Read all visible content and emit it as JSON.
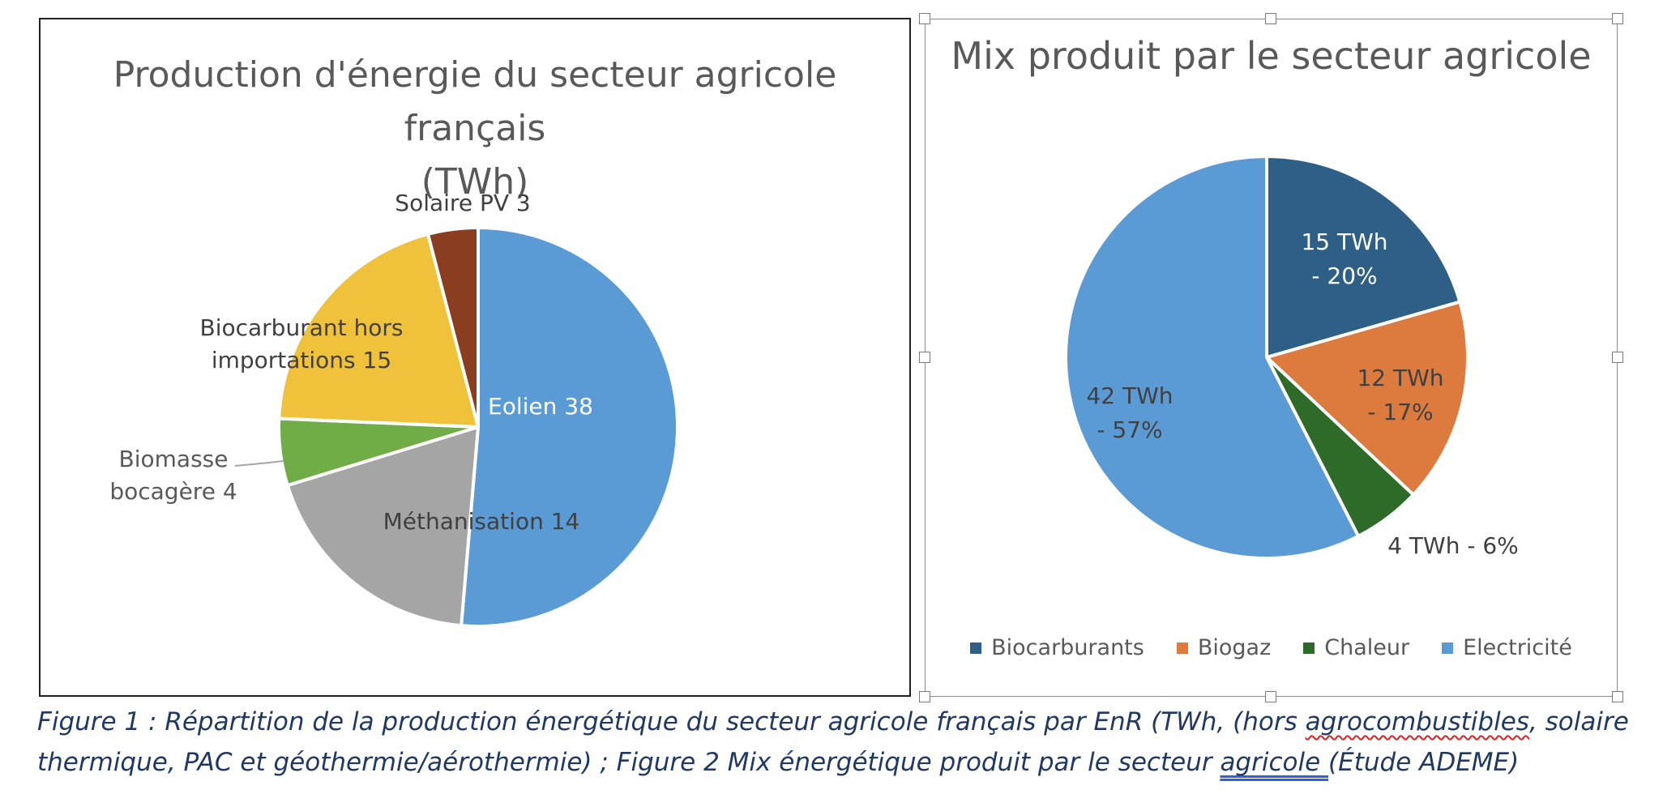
{
  "charts": [
    {
      "title_line1": "Production d'énergie du secteur agricole français",
      "title_line2": "(TWh)"
    },
    {
      "title": "Mix produit par le secteur agricole"
    }
  ],
  "chart_data": [
    {
      "type": "pie",
      "title": "Production d'énergie du secteur agricole français (TWh)",
      "unit": "TWh",
      "slices": [
        {
          "label": "Eolien",
          "value": 38,
          "data_label": "Eolien 38",
          "color": "#5b9bd5"
        },
        {
          "label": "Méthanisation",
          "value": 14,
          "data_label": "Méthanisation 14",
          "color": "#a5a5a5"
        },
        {
          "label": "Biomasse bocagère",
          "value": 4,
          "data_label": "Biomasse bocagère 4",
          "color": "#70ad47"
        },
        {
          "label": "Biocarburant hors importations",
          "value": 15,
          "data_label": "Biocarburant hors importations 15",
          "color": "#f0c23c"
        },
        {
          "label": "Solaire PV",
          "value": 3,
          "data_label": "Solaire PV 3",
          "color": "#8b3e1f"
        }
      ]
    },
    {
      "type": "pie",
      "title": "Mix produit par le secteur agricole",
      "legend": "bottom",
      "slices": [
        {
          "label": "Biocarburants",
          "value": 15,
          "percent": 20,
          "data_label": "15 TWh - 20%",
          "color": "#2e5f86"
        },
        {
          "label": "Biogaz",
          "value": 12,
          "percent": 17,
          "data_label": "12 TWh - 17%",
          "color": "#dd7a3e"
        },
        {
          "label": "Chaleur",
          "value": 4,
          "percent": 6,
          "data_label": "4 TWh - 6%",
          "color": "#2f6b28"
        },
        {
          "label": "Electricité",
          "value": 42,
          "percent": 57,
          "data_label": "42 TWh - 57%",
          "color": "#5b9bd5"
        }
      ]
    }
  ],
  "caption": {
    "part1": "Figure 1 : Répartition de la production énergétique du secteur agricole français par EnR (TWh, (hors ",
    "squiggle_word": "agrocombustibles",
    "part2": ", solaire thermique, PAC et géothermie/aérothermie) ; Figure 2 Mix énergétique produit par le secteur ",
    "underlined_word": "agricole ",
    "part3": " (Étude ADEME)"
  }
}
